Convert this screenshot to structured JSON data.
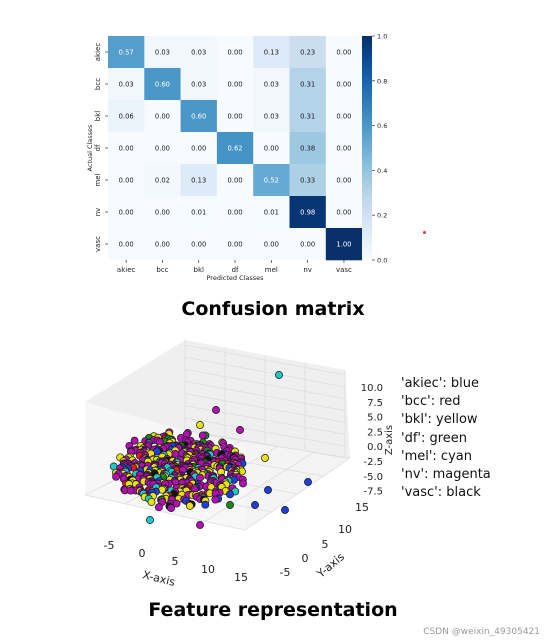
{
  "captions": {
    "confusion": "Confusion matrix",
    "feature": "Feature representation"
  },
  "watermark": "CSDN @weixin_49305421",
  "chart_data": [
    {
      "type": "heatmap",
      "xlabel": "Predicted Classes",
      "ylabel": "Actual Classes",
      "x_categories": [
        "akiec",
        "bcc",
        "bkl",
        "df",
        "mel",
        "nv",
        "vasc"
      ],
      "y_categories": [
        "akiec",
        "bcc",
        "bkl",
        "df",
        "mel",
        "nv",
        "vasc"
      ],
      "values": [
        [
          "0.57",
          "0.03",
          "0.03",
          "0.00",
          "0.13",
          "0.23",
          "0.00"
        ],
        [
          "0.03",
          "0.60",
          "0.03",
          "0.00",
          "0.03",
          "0.31",
          "0.00"
        ],
        [
          "0.06",
          "0.00",
          "0.60",
          "0.00",
          "0.03",
          "0.31",
          "0.00"
        ],
        [
          "0.00",
          "0.00",
          "0.00",
          "0.62",
          "0.00",
          "0.38",
          "0.00"
        ],
        [
          "0.00",
          "0.02",
          "0.13",
          "0.00",
          "0.52",
          "0.33",
          "0.00"
        ],
        [
          "0.00",
          "0.00",
          "0.01",
          "0.00",
          "0.01",
          "0.98",
          "0.00"
        ],
        [
          "0.00",
          "0.00",
          "0.00",
          "0.00",
          "0.00",
          "0.00",
          "1.00"
        ]
      ],
      "colorbar": {
        "range": [
          0.0,
          1.0
        ],
        "ticks": [
          "0.0",
          "0.2",
          "0.4",
          "0.6",
          "0.8",
          "1.0"
        ],
        "colormap": "Blues"
      }
    },
    {
      "type": "scatter",
      "projection": "3d",
      "xlabel": "X-axis",
      "ylabel": "Y-axis",
      "zlabel": "Z-axis",
      "x_ticks": [
        "-5",
        "0",
        "5",
        "10",
        "15"
      ],
      "y_ticks": [
        "-5",
        "0",
        "5",
        "10",
        "15"
      ],
      "z_ticks": [
        "10.0",
        "7.5",
        "5.0",
        "2.5",
        "0.0",
        "-2.5",
        "-5.0",
        "-7.5"
      ],
      "legend_placement": "right",
      "class_colors": [
        {
          "label": "'akiec': blue",
          "color": "#1f3fd9"
        },
        {
          "label": "'bcc': red",
          "color": "#d81e1e"
        },
        {
          "label": "'bkl': yellow",
          "color": "#e8e010"
        },
        {
          "label": "'df': green",
          "color": "#1a8a1a"
        },
        {
          "label": "'mel': cyan",
          "color": "#19c8c8"
        },
        {
          "label": "'nv': magenta",
          "color": "#b010b0"
        },
        {
          "label": "'vasc': black",
          "color": "#111111"
        }
      ]
    }
  ]
}
